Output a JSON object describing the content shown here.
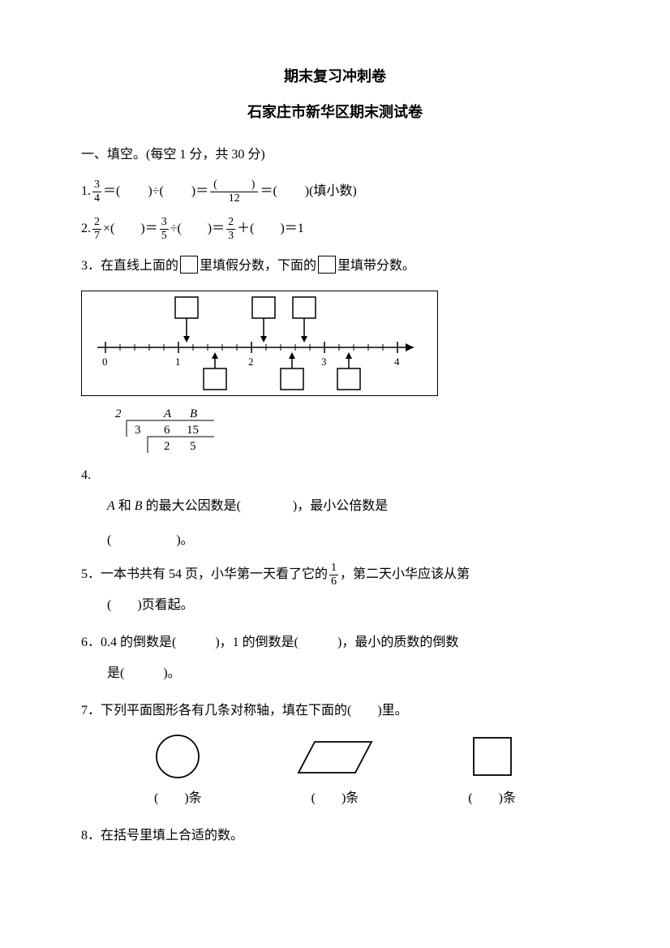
{
  "titles": {
    "t1": "期末复习冲刺卷",
    "t2": "石家庄市新华区期末测试卷"
  },
  "section1": {
    "header": "一、填空。(每空 1 分，共 30 分)"
  },
  "q1": {
    "num": "1.",
    "frac_n": "3",
    "frac_d": "4",
    "eq1": "＝(",
    "div": ")÷(",
    "eq2": ")＝",
    "blank_n": "(　　　)",
    "blank_d": "12",
    "eq3": "＝(",
    "tail": ")(填小数)"
  },
  "q2": {
    "num": "2.",
    "f1n": "2",
    "f1d": "7",
    "seg1": "×(　　)＝",
    "f2n": "3",
    "f2d": "5",
    "seg2": "÷(　　)＝",
    "f3n": "2",
    "f3d": "3",
    "seg3": "＋(　　)＝1"
  },
  "q3": {
    "num": "3．",
    "a": "在直线上面的",
    "b": "里填假分数，下面的",
    "c": "里填带分数。"
  },
  "numberline": {
    "ticks": [
      "0",
      "1",
      "2",
      "3",
      "4"
    ],
    "top_boxes_x": [
      130,
      225,
      275
    ],
    "bottom_boxes_x": [
      165,
      260,
      330
    ]
  },
  "q4": {
    "num": "4.",
    "ladder": {
      "outside_left": "2",
      "outside_left2": "3",
      "cols": [
        "A",
        "B"
      ],
      "row2": [
        "6",
        "15"
      ],
      "row3": [
        "2",
        "5"
      ]
    },
    "line1a": "A",
    "line1b": " 和 ",
    "line1c": "B",
    "line1d": " 的最大公因数是(　　　　)，最小公倍数是",
    "line2": "(　　　　　)。"
  },
  "q5": {
    "num": "5．",
    "a": "一本书共有 54 页，小华第一天看了它的",
    "fn": "1",
    "fd": "6",
    "b": "，第二天小华应该从第",
    "c": "(　　)页看起。"
  },
  "q6": {
    "num": "6．",
    "a": "0.4 的倒数是(　　　)，1 的倒数是(　　　)，最小的质数的倒数",
    "b": "是(　　　)。"
  },
  "q7": {
    "num": "7．",
    "a": "下列平面图形各有几条对称轴，填在下面的(　　)里。",
    "labels": [
      "(　　)条",
      "(　　)条",
      "(　　)条"
    ]
  },
  "q8": {
    "num": "8．",
    "a": "在括号里填上合适的数。"
  },
  "style": {
    "text_color": "#000000",
    "bg_color": "#ffffff",
    "font_body": 16,
    "font_title": 18
  }
}
